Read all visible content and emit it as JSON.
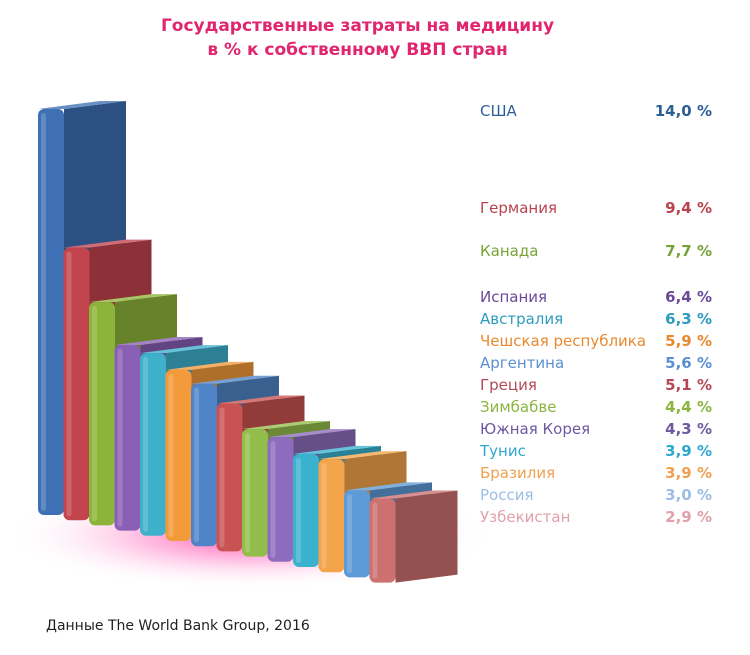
{
  "title_line1": "Государственные затраты на медицину",
  "title_line2": "в % к собственному ВВП стран",
  "source": "Данные The World Bank Group, 2016",
  "colors": {
    "title": "#e0266e",
    "glow": "#ff3da8"
  },
  "chart_data": {
    "type": "bar",
    "title": "Государственные затраты на медицину в % к собственному ВВП стран",
    "unit": "%",
    "categories": [
      "США",
      "Германия",
      "Канада",
      "Испания",
      "Австралия",
      "Чешская республика",
      "Аргентина",
      "Греция",
      "Зимбабве",
      "Южная Корея",
      "Тунис",
      "Бразилия",
      "Россия",
      "Узбекистан"
    ],
    "values": [
      14.0,
      9.4,
      7.7,
      6.4,
      6.3,
      5.9,
      5.6,
      5.1,
      4.4,
      4.3,
      3.9,
      3.9,
      3.0,
      2.9
    ],
    "value_labels": [
      "14,0 %",
      "9,4 %",
      "7,7 %",
      "6,4 %",
      "6,3 %",
      "5,9 %",
      "5,6 %",
      "5,1 %",
      "4,4 %",
      "4,3 %",
      "3,9 %",
      "3,9 %",
      "3,0 %",
      "2,9 %"
    ],
    "series_colors": [
      "#3f6fb5",
      "#c2444d",
      "#8db43a",
      "#8a5fb6",
      "#3eb0cc",
      "#f39a3a",
      "#4f85c7",
      "#c95252",
      "#93bd4a",
      "#8d6cbe",
      "#3ab2cf",
      "#f4a44a",
      "#5d9ad6",
      "#cc7070"
    ],
    "label_colors": [
      "#2d5f97",
      "#b8434e",
      "#77a336",
      "#6a4a98",
      "#2e9bbf",
      "#e8892f",
      "#5a8fd0",
      "#b24a56",
      "#8bb540",
      "#6d5aa0",
      "#2ea7d0",
      "#f0a050",
      "#9cbde6",
      "#e0a0aa"
    ]
  }
}
